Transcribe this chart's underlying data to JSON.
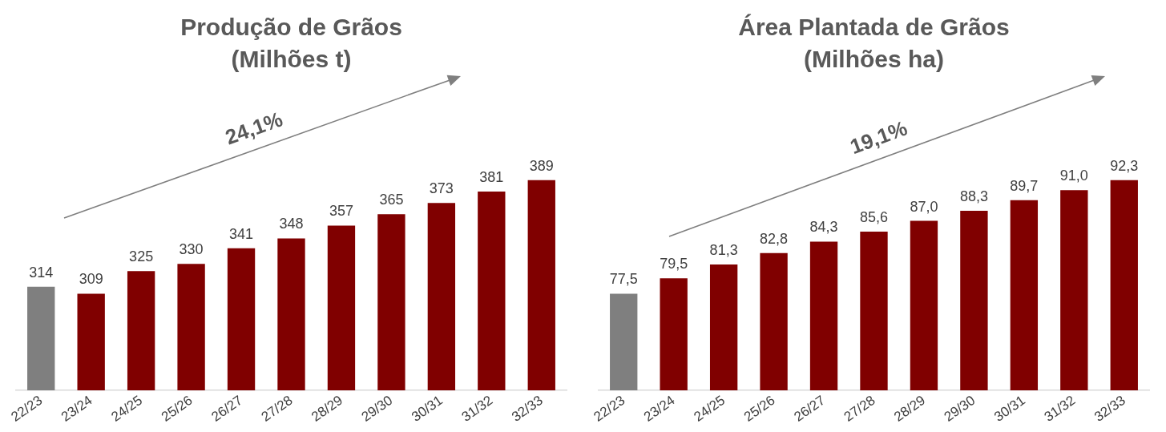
{
  "chart_data": [
    {
      "type": "bar",
      "title": "Produção de Grãos",
      "subtitle": "(Milhões t)",
      "categories": [
        "22/23",
        "23/24",
        "24/25",
        "25/26",
        "26/27",
        "27/28",
        "28/29",
        "29/30",
        "30/31",
        "31/32",
        "32/33"
      ],
      "values": [
        314,
        309,
        325,
        330,
        341,
        348,
        357,
        365,
        373,
        381,
        389
      ],
      "colors": [
        "#7f7f7f",
        "#800000",
        "#800000",
        "#800000",
        "#800000",
        "#800000",
        "#800000",
        "#800000",
        "#800000",
        "#800000",
        "#800000"
      ],
      "tick_labels": "x",
      "grid": false,
      "legend": false,
      "data_labels": true,
      "annotations": [
        "24,1%"
      ]
    },
    {
      "type": "bar",
      "title": "Área Plantada de Grãos",
      "subtitle": "(Milhões ha)",
      "categories": [
        "22/23",
        "23/24",
        "24/25",
        "25/26",
        "26/27",
        "27/28",
        "28/29",
        "29/30",
        "30/31",
        "31/32",
        "32/33"
      ],
      "values": [
        77.5,
        79.5,
        81.3,
        82.8,
        84.3,
        85.6,
        87.0,
        88.3,
        89.7,
        91.0,
        92.3
      ],
      "value_labels": [
        "77,5",
        "79,5",
        "81,3",
        "82,8",
        "84,3",
        "85,6",
        "87,0",
        "88,3",
        "89,7",
        "91,0",
        "92,3"
      ],
      "colors": [
        "#7f7f7f",
        "#800000",
        "#800000",
        "#800000",
        "#800000",
        "#800000",
        "#800000",
        "#800000",
        "#800000",
        "#800000",
        "#800000"
      ],
      "tick_labels": "x",
      "grid": false,
      "legend": false,
      "annotations": [
        "19,1%"
      ]
    }
  ]
}
